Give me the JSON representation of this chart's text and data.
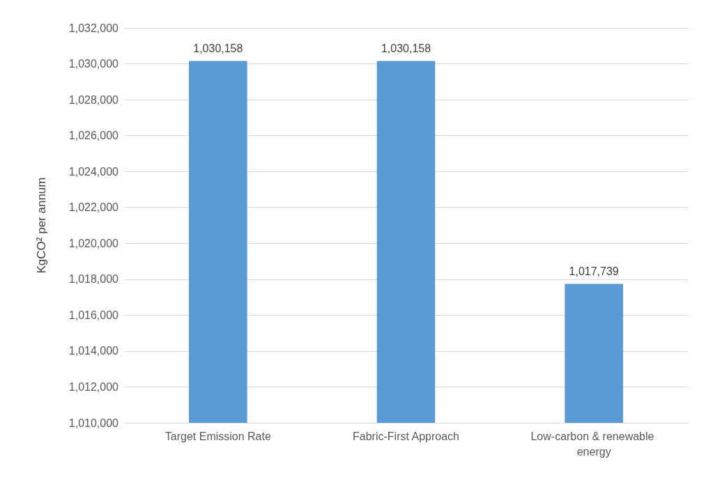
{
  "chart_data": {
    "type": "bar",
    "ylabel": "KgCO² per annum",
    "categories": [
      "Target Emission Rate",
      "Fabric-First Approach",
      "Low-carbon & renewable energy"
    ],
    "values": [
      1030158,
      1030158,
      1017739
    ],
    "color": "#5b9bd5",
    "value_labels": [
      "1,030,158",
      "1,030,158",
      "1,017,739"
    ],
    "ylim": [
      1010000,
      1032000
    ],
    "yticks": [
      {
        "value": 1010000,
        "label": "1,010,000"
      },
      {
        "value": 1012000,
        "label": "1,012,000"
      },
      {
        "value": 1014000,
        "label": "1,014,000"
      },
      {
        "value": 1016000,
        "label": "1,016,000"
      },
      {
        "value": 1018000,
        "label": "1,018,000"
      },
      {
        "value": 1020000,
        "label": "1,020,000"
      },
      {
        "value": 1022000,
        "label": "1,022,000"
      },
      {
        "value": 1024000,
        "label": "1,024,000"
      },
      {
        "value": 1026000,
        "label": "1,026,000"
      },
      {
        "value": 1028000,
        "label": "1,028,000"
      },
      {
        "value": 1030000,
        "label": "1,030,000"
      },
      {
        "value": 1032000,
        "label": "1,032,000"
      }
    ],
    "grid": "y"
  }
}
